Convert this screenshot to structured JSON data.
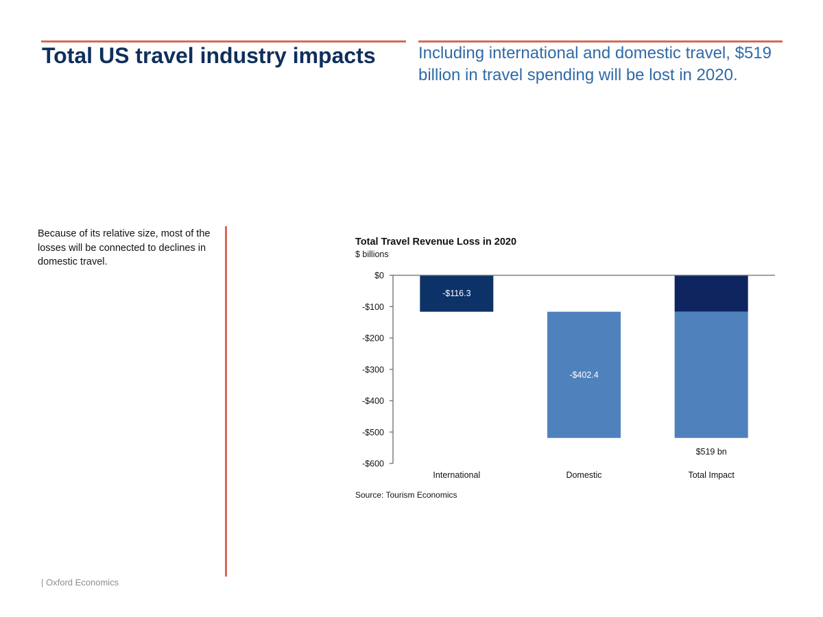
{
  "slide": {
    "title": "Total US travel industry impacts",
    "headline": "Including international and domestic travel, $519 billion in travel spending will be lost in 2020.",
    "side_note": "Because of its relative size, most of the losses will be connected to declines in domestic travel.",
    "footer": "| Oxford Economics"
  },
  "colors": {
    "accent_rule": "#d36a55",
    "title": "#0f2f5c",
    "headline": "#2f6aa8",
    "international": "#0d3268",
    "international_stack": "#0f2560",
    "domestic": "#4f81bd",
    "axis": "#7f7f7f",
    "text": "#111111"
  },
  "chart_data": {
    "type": "bar",
    "subtype": "waterfall",
    "title": "Total Travel Revenue Loss in 2020",
    "subtitle": "$ billions",
    "categories": [
      "International",
      "Domestic",
      "Total Impact"
    ],
    "series": [
      {
        "name": "International",
        "values": [
          -116.3,
          null,
          -116.3
        ]
      },
      {
        "name": "Domestic",
        "values": [
          null,
          -402.4,
          -402.4
        ]
      }
    ],
    "data_labels": [
      "-$116.3",
      "-$402.4",
      "$519 bn"
    ],
    "ylim": [
      -600,
      0
    ],
    "yticks": [
      0,
      -100,
      -200,
      -300,
      -400,
      -500,
      -600
    ],
    "ytick_labels": [
      "$0",
      "-$100",
      "-$200",
      "-$300",
      "-$400",
      "-$500",
      "-$600"
    ],
    "grid": false,
    "legend": "none",
    "source": "Source: Tourism Economics"
  }
}
